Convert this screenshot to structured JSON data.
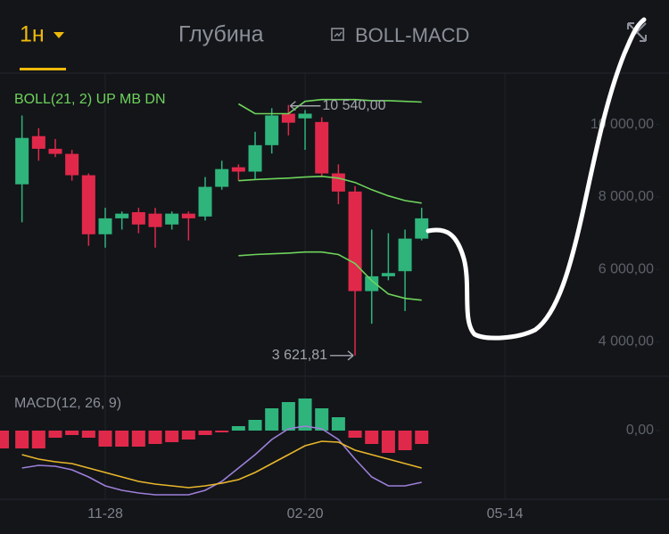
{
  "header": {
    "tabs": [
      "1н",
      "Глубина",
      "BOLL-MACD"
    ]
  },
  "chart_data": [
    {
      "type": "candlestick",
      "title": "BOLL(21, 2) UP MB DN",
      "categories": [
        null,
        null,
        null,
        null,
        null,
        null,
        null,
        null,
        null,
        null,
        null,
        null,
        null,
        null,
        null,
        null,
        null,
        null,
        null,
        null,
        null,
        null,
        null,
        null,
        null
      ],
      "open": [
        8350,
        9680,
        9330,
        9190,
        8600,
        6970,
        7410,
        7580,
        7540,
        7240,
        7540,
        7460,
        8280,
        8820,
        8700,
        9430,
        10300,
        10170,
        10070,
        8650,
        8150,
        5400,
        5810,
        5950,
        6850
      ],
      "high": [
        10250,
        9900,
        9600,
        9300,
        8650,
        7700,
        7600,
        7700,
        7700,
        7600,
        7600,
        8550,
        9000,
        8900,
        9800,
        10450,
        10540,
        10400,
        10200,
        8900,
        8300,
        7100,
        7000,
        7100,
        7700
      ],
      "low": [
        7300,
        9000,
        9100,
        8450,
        6650,
        6600,
        7100,
        7000,
        6600,
        7100,
        6800,
        7350,
        8200,
        8450,
        8500,
        9200,
        9700,
        9300,
        8550,
        7800,
        3621.81,
        4500,
        5700,
        4850,
        6800
      ],
      "close": [
        9630,
        9330,
        9190,
        8600,
        6970,
        7410,
        7540,
        7240,
        7170,
        7540,
        7410,
        8280,
        8770,
        8700,
        9430,
        10250,
        10050,
        10300,
        8650,
        8150,
        5400,
        5810,
        5900,
        6850,
        7410
      ],
      "up_color": "#2fb47c",
      "down_color": "#e0294a",
      "series": [
        {
          "name": "UP",
          "color": "#6fd35b",
          "values": [
            null,
            null,
            null,
            null,
            null,
            null,
            null,
            null,
            null,
            null,
            null,
            null,
            null,
            10570,
            10300,
            10300,
            10300,
            10640,
            10690,
            10690,
            10690,
            10660,
            10660,
            10640,
            10620
          ]
        },
        {
          "name": "MB",
          "color": "#6fd35b",
          "values": [
            null,
            null,
            null,
            null,
            null,
            null,
            null,
            null,
            null,
            null,
            null,
            null,
            null,
            8450,
            8480,
            8500,
            8520,
            8550,
            8570,
            8520,
            8400,
            8200,
            8030,
            7900,
            7830
          ]
        },
        {
          "name": "DN",
          "color": "#6fd35b",
          "values": [
            null,
            null,
            null,
            null,
            null,
            null,
            null,
            null,
            null,
            null,
            null,
            null,
            null,
            6380,
            6410,
            6430,
            6450,
            6480,
            6480,
            6410,
            6160,
            5690,
            5320,
            5200,
            5150
          ]
        }
      ],
      "annotations": [
        {
          "label": "10 540,00",
          "value": 10540
        },
        {
          "label": "3 621,81",
          "value": 3621.81
        }
      ],
      "ylim": [
        3100,
        11100
      ],
      "yticks": [
        {
          "value": 4000,
          "label": "4 000,00"
        },
        {
          "value": 6000,
          "label": "6 000,00"
        },
        {
          "value": 8000,
          "label": "8 000,00"
        },
        {
          "value": 10000,
          "label": "10 000,00"
        }
      ],
      "xticks": [
        {
          "value": 5,
          "label": "11-28"
        },
        {
          "value": 17,
          "label": "02-20"
        },
        {
          "value": 29,
          "label": "05-14"
        }
      ]
    },
    {
      "type": "macd",
      "title": "MACD(12, 26, 9)",
      "values": [
        -200,
        -200,
        -80,
        -50,
        -80,
        -180,
        -180,
        -180,
        -150,
        -130,
        -100,
        -50,
        -20,
        50,
        120,
        250,
        320,
        360,
        250,
        150,
        -80,
        -150,
        -250,
        -220,
        -150
      ],
      "up_color": "#2fb47c",
      "down_color": "#e0294a",
      "series": [
        {
          "name": "DIF",
          "color": "#9d7fd9",
          "values": [
            -420,
            -390,
            -400,
            -440,
            -520,
            -620,
            -670,
            -700,
            -720,
            -720,
            -720,
            -670,
            -570,
            -420,
            -270,
            -100,
            20,
            50,
            20,
            -100,
            -320,
            -520,
            -620,
            -620,
            -580
          ]
        },
        {
          "name": "DEA",
          "color": "#e9b62a",
          "values": [
            -270,
            -320,
            -350,
            -370,
            -420,
            -470,
            -520,
            -570,
            -600,
            -620,
            -640,
            -620,
            -590,
            -550,
            -470,
            -370,
            -270,
            -170,
            -120,
            -130,
            -220,
            -270,
            -320,
            -370,
            -420
          ]
        }
      ],
      "ylim": [
        -770,
        380
      ],
      "yticks": [
        {
          "value": 0,
          "label": "0,00"
        }
      ]
    }
  ]
}
